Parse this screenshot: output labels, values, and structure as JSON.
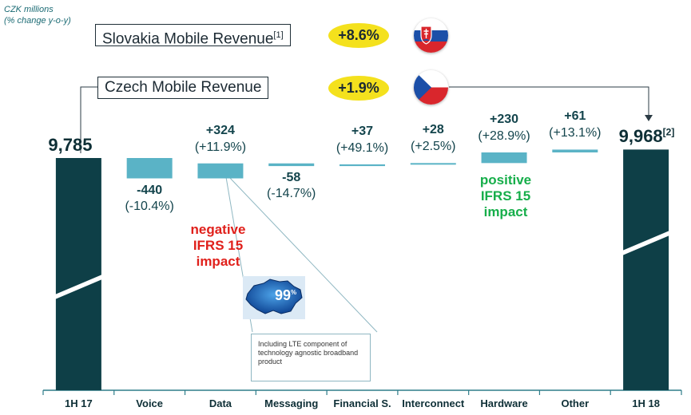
{
  "header": {
    "unit_line1": "CZK millions",
    "unit_line2": "(% change y-o-y)",
    "slovakia_title": "Slovakia Mobile Revenue",
    "slovakia_footnote": "[1]",
    "slovakia_change": "+8.6%",
    "czech_title": "Czech Mobile Revenue",
    "czech_change": "+1.9%",
    "flag_slovakia": "slovakia-flag-icon",
    "flag_czech": "czech-flag-icon"
  },
  "annotations": {
    "negative_ifrs": [
      "negative",
      "IFRS 15",
      "impact"
    ],
    "positive_ifrs": [
      "positive",
      "IFRS 15",
      "impact"
    ],
    "map_badge": "99",
    "map_badge_suffix": "%",
    "note_text": "Including LTE component of technology agnostic broadband product",
    "end_total_footnote": "[2]"
  },
  "colors": {
    "total_bar": "#0e3f47",
    "delta_bar": "#5ab3c6",
    "negative_text": "#e0201b",
    "positive_text": "#16ae4a",
    "highlight_pill": "#f4e11d"
  },
  "chart_data": {
    "type": "bar",
    "subtype": "waterfall",
    "categories": [
      "1H 17",
      "Voice",
      "Data",
      "Messaging",
      "Financial S.",
      "Interconnect",
      "Hardware",
      "Other",
      "1H 18"
    ],
    "values": [
      9785,
      -440,
      324,
      -58,
      37,
      28,
      230,
      61,
      9968
    ],
    "value_labels": [
      "9,785",
      "-440",
      "+324",
      "-58",
      "+37",
      "+28",
      "+230",
      "+61",
      "9,968"
    ],
    "pct_labels": [
      "",
      "(-10.4%)",
      "(+11.9%)",
      "(-14.7%)",
      "(+49.1%)",
      "(+2.5%)",
      "(+28.9%)",
      "(+13.1%)",
      ""
    ],
    "totals": [
      true,
      false,
      false,
      false,
      false,
      false,
      false,
      false,
      true
    ],
    "axis_broken": true
  }
}
